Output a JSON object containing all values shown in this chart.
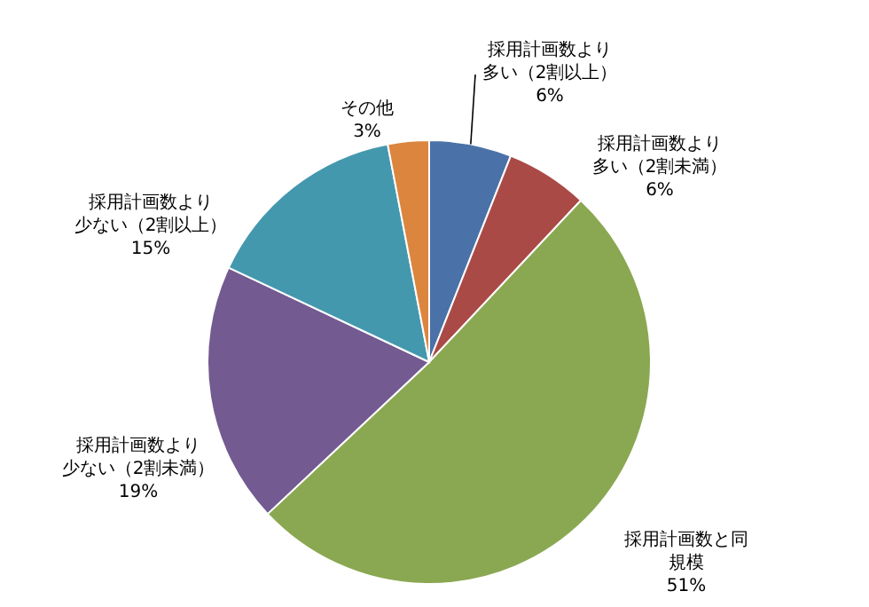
{
  "chart_data": {
    "type": "pie",
    "categories": [
      "採用計画数より多い（2割以上）",
      "採用計画数より多い（2割未満）",
      "採用計画数と同規模",
      "採用計画数より少ない（2割未満）",
      "採用計画数より少ない（2割以上）",
      "その他"
    ],
    "values": [
      6,
      6,
      51,
      19,
      15,
      3
    ],
    "value_labels": [
      "6%",
      "6%",
      "51%",
      "19%",
      "15%",
      "3%"
    ],
    "colors": [
      "#4a72a8",
      "#aa4a47",
      "#8aa851",
      "#735a91",
      "#4498ae",
      "#dc853f"
    ]
  }
}
